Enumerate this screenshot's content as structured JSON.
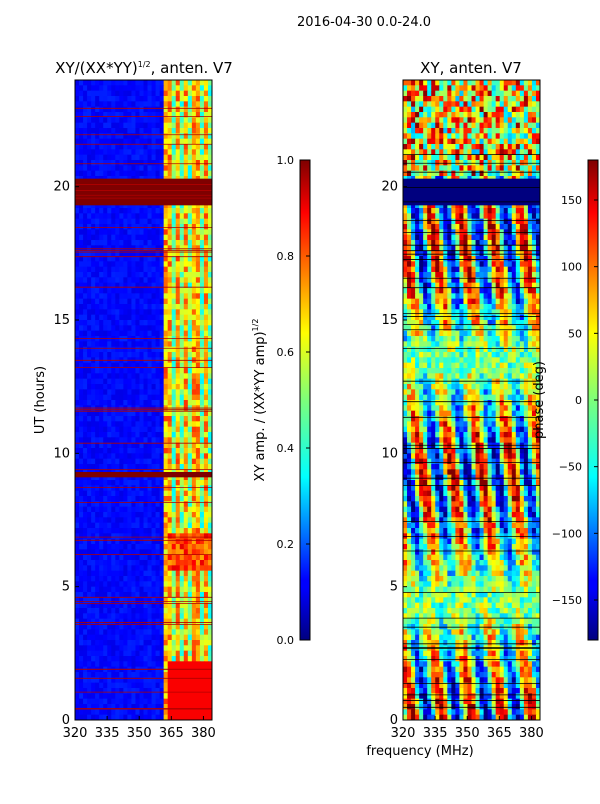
{
  "figure_title": "2016-04-30 0.0-24.0",
  "xlabel_shared": "frequency (MHz)",
  "chart_data": [
    {
      "type": "heatmap",
      "title_main": "XY/(XX*YY)",
      "title_sup": "1/2",
      "title_tail": ", anten. V7",
      "xlabel": "",
      "ylabel": "UT (hours)",
      "xlim": [
        320,
        384
      ],
      "ylim": [
        0,
        24
      ],
      "x_ticks": [
        320,
        335,
        350,
        365,
        380
      ],
      "y_ticks": [
        0,
        5,
        10,
        15,
        20
      ],
      "colormap": "jet",
      "colorbar": {
        "label_main": "XY amp. / (XX*YY amp)",
        "label_sup": "1/2",
        "range": [
          0.0,
          1.0
        ],
        "ticks": [
          "0.0",
          "0.2",
          "0.4",
          "0.6",
          "0.8",
          "1.0"
        ]
      },
      "flagged_bands_hours": [
        [
          19.3,
          20.3
        ],
        [
          9.1,
          9.3
        ]
      ]
    },
    {
      "type": "heatmap",
      "title": "XY, anten. V7",
      "xlabel": "frequency (MHz)",
      "ylabel": "",
      "xlim": [
        320,
        384
      ],
      "ylim": [
        0,
        24
      ],
      "x_ticks": [
        320,
        335,
        350,
        365,
        380
      ],
      "y_ticks": [
        0,
        5,
        10,
        15,
        20
      ],
      "colormap": "jet",
      "colorbar": {
        "label": "phase (deg)",
        "range": [
          -180,
          180
        ],
        "ticks": [
          "150",
          "100",
          "50",
          "0",
          "−50",
          "−100",
          "−150"
        ]
      },
      "flagged_bands_hours": [
        [
          19.3,
          20.3
        ]
      ]
    }
  ]
}
